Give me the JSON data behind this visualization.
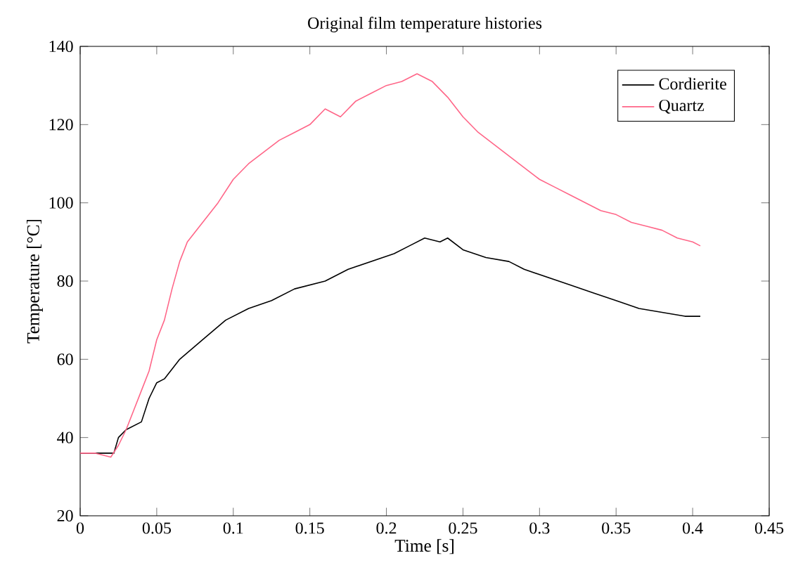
{
  "chart_data": {
    "type": "line",
    "title": "Original film temperature histories",
    "xlabel": "Time [s]",
    "ylabel": "Temperature [°C]",
    "xlim": [
      0,
      0.45
    ],
    "xticks": [
      0,
      0.05,
      0.1,
      0.15,
      0.2,
      0.25,
      0.3,
      0.35,
      0.4,
      0.45
    ],
    "ylim": [
      20,
      140
    ],
    "yticks": [
      20,
      40,
      60,
      80,
      100,
      120,
      140
    ],
    "grid": false,
    "legend": "top right",
    "series": [
      {
        "name": "Cordierite",
        "color": "#000000",
        "x": [
          0,
          0.01,
          0.022,
          0.025,
          0.03,
          0.04,
          0.045,
          0.05,
          0.055,
          0.065,
          0.08,
          0.095,
          0.11,
          0.125,
          0.14,
          0.16,
          0.175,
          0.19,
          0.205,
          0.215,
          0.225,
          0.235,
          0.24,
          0.25,
          0.265,
          0.28,
          0.29,
          0.305,
          0.32,
          0.335,
          0.35,
          0.365,
          0.38,
          0.395,
          0.405
        ],
        "values": [
          36,
          36,
          36,
          40,
          42,
          44,
          50,
          54,
          55,
          60,
          65,
          70,
          73,
          75,
          78,
          80,
          83,
          85,
          87,
          89,
          91,
          90,
          91,
          88,
          86,
          85,
          83,
          81,
          79,
          77,
          75,
          73,
          72,
          71,
          71
        ]
      },
      {
        "name": "Quartz",
        "color": "#ff6688",
        "x": [
          0,
          0.01,
          0.02,
          0.025,
          0.03,
          0.035,
          0.04,
          0.045,
          0.05,
          0.055,
          0.06,
          0.065,
          0.07,
          0.08,
          0.09,
          0.1,
          0.11,
          0.12,
          0.13,
          0.14,
          0.15,
          0.16,
          0.17,
          0.18,
          0.19,
          0.2,
          0.21,
          0.22,
          0.23,
          0.24,
          0.25,
          0.26,
          0.27,
          0.28,
          0.29,
          0.3,
          0.31,
          0.32,
          0.33,
          0.34,
          0.35,
          0.36,
          0.37,
          0.38,
          0.39,
          0.4,
          0.405
        ],
        "values": [
          36,
          36,
          35,
          38,
          42,
          47,
          52,
          57,
          65,
          70,
          78,
          85,
          90,
          95,
          100,
          106,
          110,
          113,
          116,
          118,
          120,
          124,
          122,
          126,
          128,
          130,
          131,
          133,
          131,
          127,
          122,
          118,
          115,
          112,
          109,
          106,
          104,
          102,
          100,
          98,
          97,
          95,
          94,
          93,
          91,
          90,
          89
        ]
      }
    ]
  }
}
